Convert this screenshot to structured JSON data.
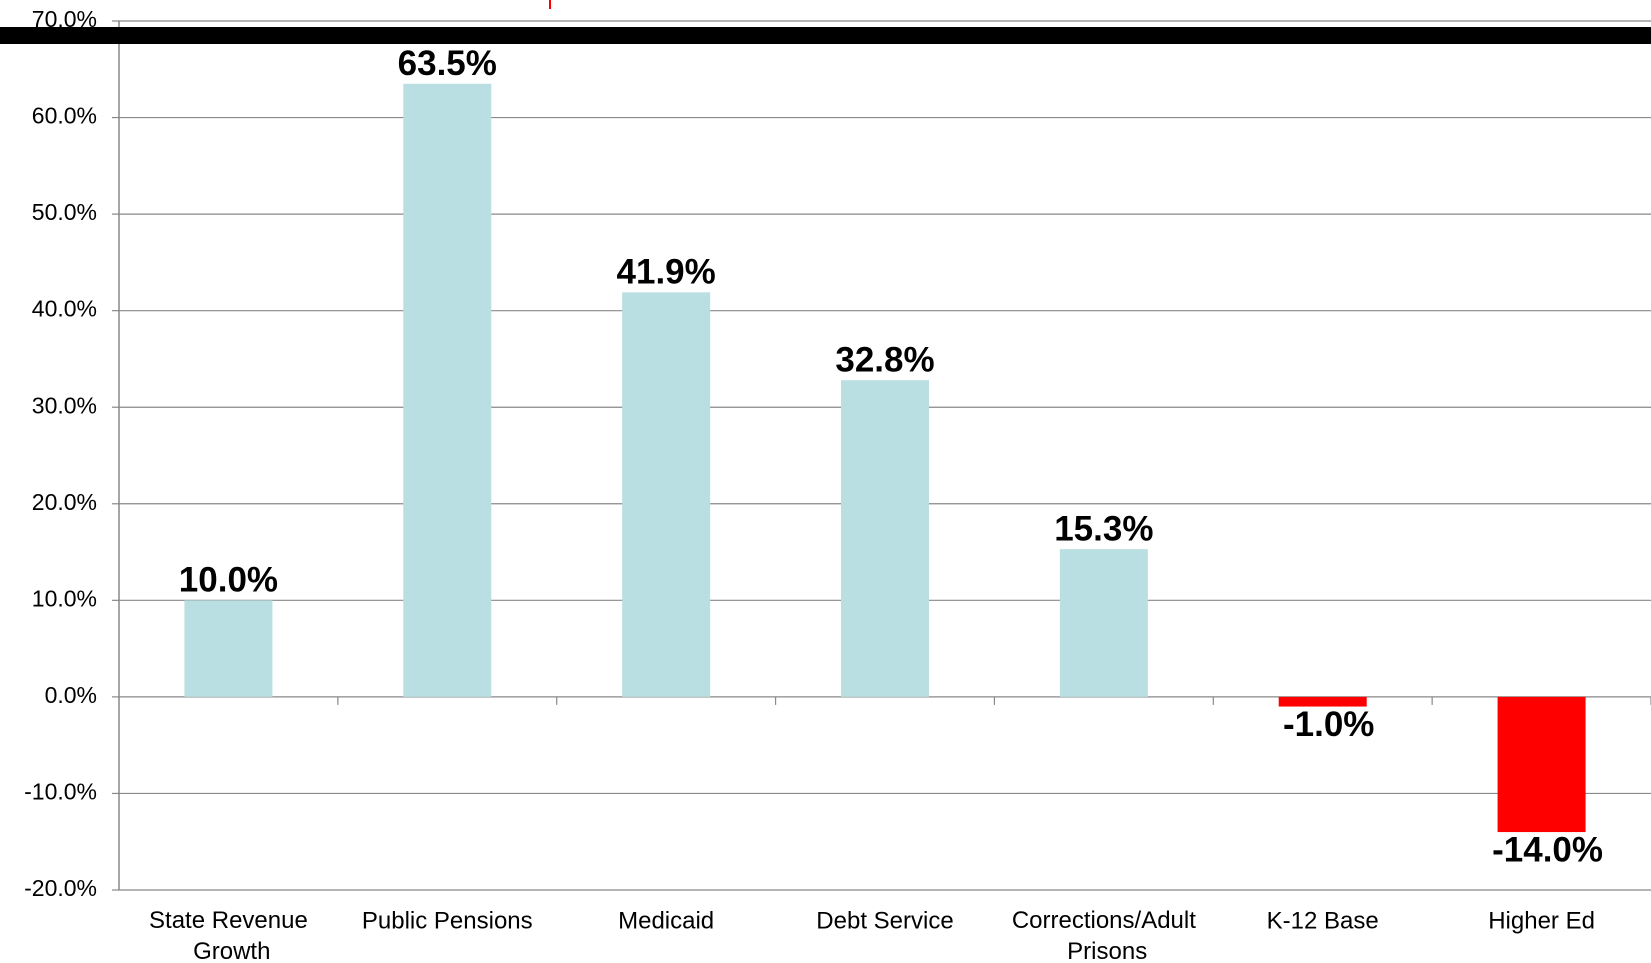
{
  "chart_data": {
    "type": "bar",
    "categories": [
      "State Revenue Growth",
      "Public Pensions",
      "Medicaid",
      "Debt Service",
      "Corrections/Adult Prisons",
      "K-12 Base",
      "Higher Ed"
    ],
    "values": [
      10.0,
      63.5,
      41.9,
      32.8,
      15.3,
      -1.0,
      -14.0
    ],
    "value_labels": [
      "10.0%",
      "63.5%",
      "41.9%",
      "32.8%",
      "15.3%",
      "-1.0%",
      "-14.0%"
    ],
    "colors": [
      "#b9dfe2",
      "#b9dfe2",
      "#b9dfe2",
      "#b9dfe2",
      "#b9dfe2",
      "#ff0000",
      "#ff0000"
    ],
    "ylim": [
      -20,
      70
    ],
    "yticks": [
      {
        "value": -20,
        "label": "-20.0%"
      },
      {
        "value": -10,
        "label": "-10.0%"
      },
      {
        "value": 0,
        "label": "0.0%"
      },
      {
        "value": 10,
        "label": "10.0%"
      },
      {
        "value": 20,
        "label": "20.0%"
      },
      {
        "value": 30,
        "label": "30.0%"
      },
      {
        "value": 40,
        "label": "40.0%"
      },
      {
        "value": 50,
        "label": "50.0%"
      },
      {
        "value": 60,
        "label": "60.0%"
      },
      {
        "value": 70,
        "label": "70.0%"
      }
    ],
    "grid": true
  }
}
